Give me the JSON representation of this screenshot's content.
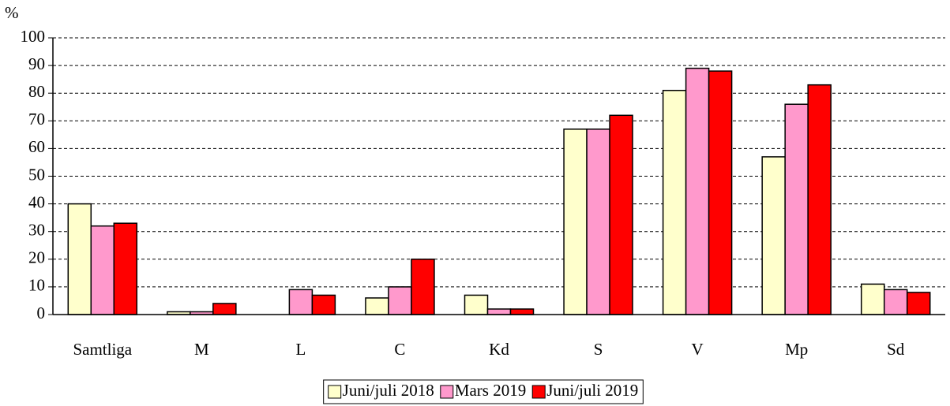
{
  "chart_data": {
    "type": "bar",
    "y_label": "%",
    "categories": [
      "Samtliga",
      "M",
      "L",
      "C",
      "Kd",
      "S",
      "V",
      "Mp",
      "Sd"
    ],
    "series": [
      {
        "name": "Juni/juli 2018",
        "color": "#ffffcc",
        "values": [
          40,
          1,
          0,
          6,
          7,
          67,
          81,
          57,
          11
        ]
      },
      {
        "name": "Mars 2019",
        "color": "#ff99cc",
        "values": [
          32,
          1,
          9,
          10,
          2,
          67,
          89,
          76,
          9
        ]
      },
      {
        "name": "Juni/juli 2019",
        "color": "#ff0000",
        "values": [
          33,
          4,
          7,
          20,
          2,
          72,
          88,
          83,
          8
        ]
      }
    ],
    "ylim": [
      0,
      100
    ],
    "yticks": [
      0,
      10,
      20,
      30,
      40,
      50,
      60,
      70,
      80,
      90,
      100
    ],
    "grid": true,
    "legend": "bottom"
  }
}
